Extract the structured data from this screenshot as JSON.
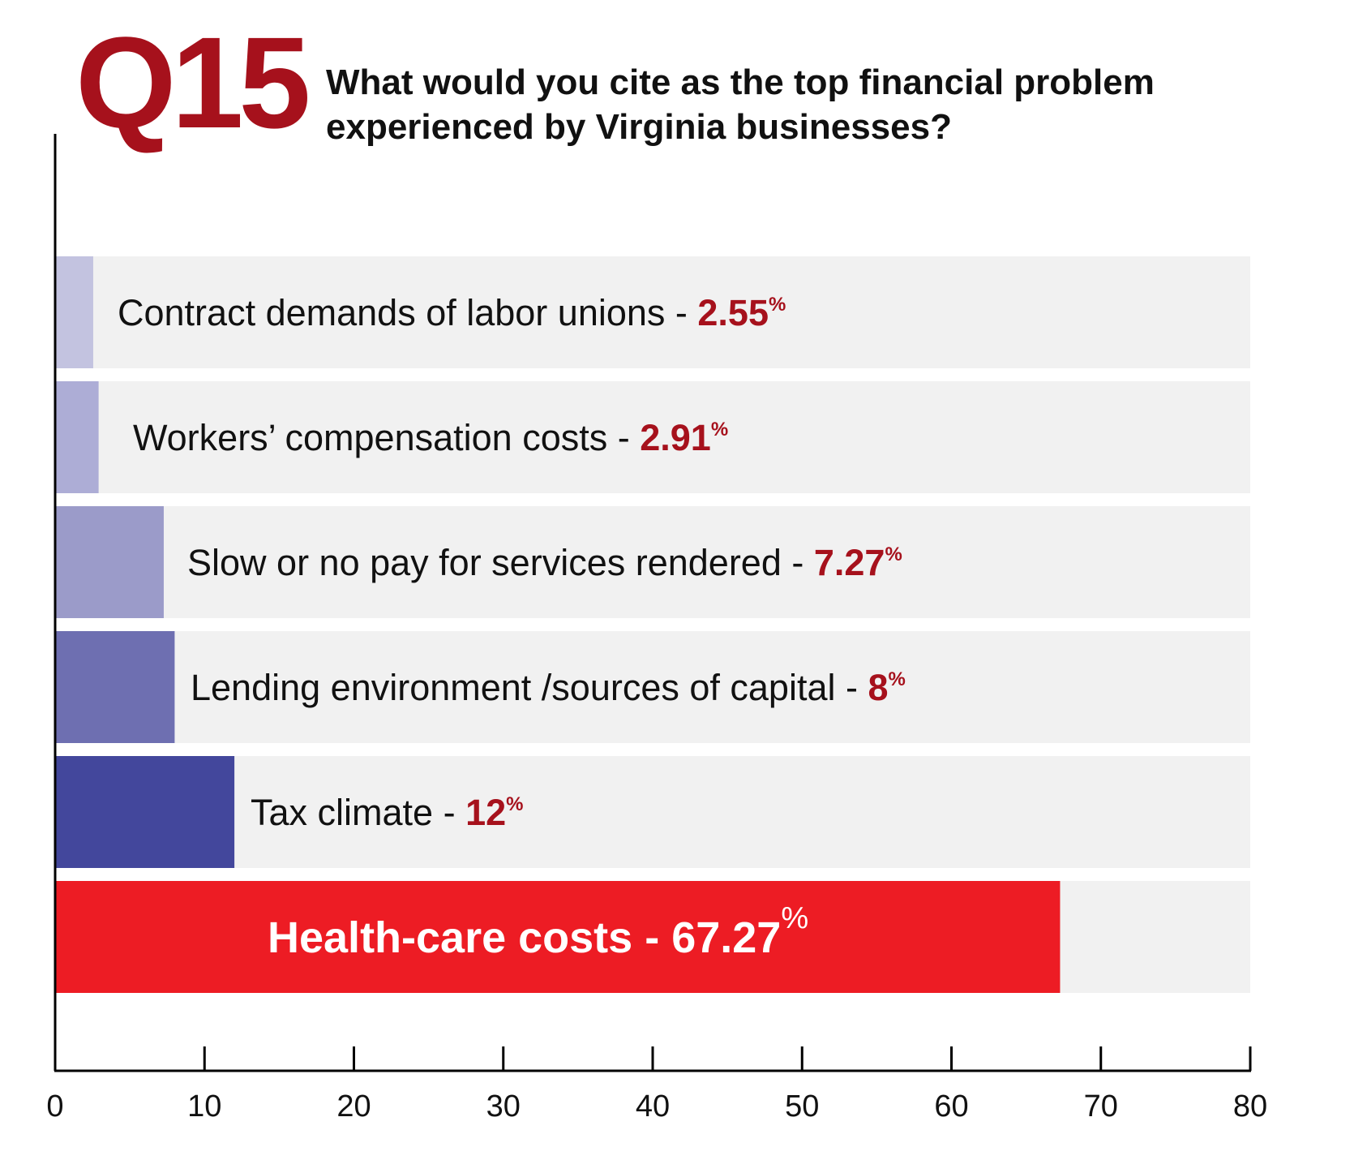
{
  "header": {
    "qnum": "Q15",
    "question": "What would you cite as the top financial problem experienced by Virginia businesses?"
  },
  "colors": {
    "track": "#f1f1f1",
    "accent_text": "#a6111c",
    "highlight_bar": "#ed1c24"
  },
  "chart_data": {
    "type": "bar",
    "orientation": "horizontal",
    "xlim": [
      0,
      80
    ],
    "xticks": [
      0,
      10,
      20,
      30,
      40,
      50,
      60,
      70,
      80
    ],
    "grid": false,
    "legend": "none",
    "bars": [
      {
        "label": "Contract demands of labor unions",
        "value_label": "2.55",
        "value": 2.55,
        "color": "#c3c3e0"
      },
      {
        "label": "Workers’ compensation costs",
        "value_label": "2.91",
        "value": 2.91,
        "color": "#adadd6"
      },
      {
        "label": "Slow or no pay for services rendered",
        "value_label": "7.27",
        "value": 7.27,
        "color": "#9b9bc9"
      },
      {
        "label": "Lending environment /sources of capital",
        "value_label": "8",
        "value": 8,
        "color": "#6e6fb1"
      },
      {
        "label": "Tax climate",
        "value_label": "12",
        "value": 12,
        "color": "#43479c"
      },
      {
        "label": "Health-care costs",
        "value_label": "67.27",
        "value": 67.27,
        "color": "#ed1c24",
        "highlight": true
      }
    ],
    "separator": " - ",
    "unit": "%"
  }
}
